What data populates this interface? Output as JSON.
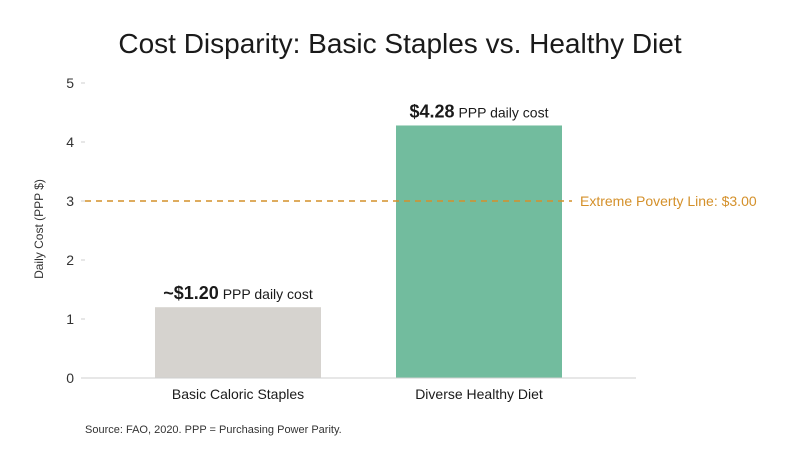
{
  "chart_data": {
    "type": "bar",
    "title": "Cost Disparity: Basic Staples vs. Healthy Diet",
    "ylabel": "Daily Cost (PPP $)",
    "xlabel": "",
    "ylim": [
      0,
      5
    ],
    "yticks": [
      0,
      1,
      2,
      3,
      4,
      5
    ],
    "grid": false,
    "categories": [
      "Basic Caloric Staples",
      "Diverse Healthy Diet"
    ],
    "values": [
      1.2,
      4.28
    ],
    "bar_colors": [
      "#d6d3cf",
      "#72bc9e"
    ],
    "data_labels": [
      {
        "value_text": "~$1.20",
        "suffix": " PPP daily cost"
      },
      {
        "value_text": "$4.28",
        "suffix": " PPP daily cost"
      }
    ],
    "reference_line": {
      "value": 3.0,
      "label": "Extreme Poverty Line: $3.00",
      "color": "#d4902a",
      "style": "dashed"
    },
    "source": "Source: FAO, 2020. PPP = Purchasing Power Parity."
  }
}
